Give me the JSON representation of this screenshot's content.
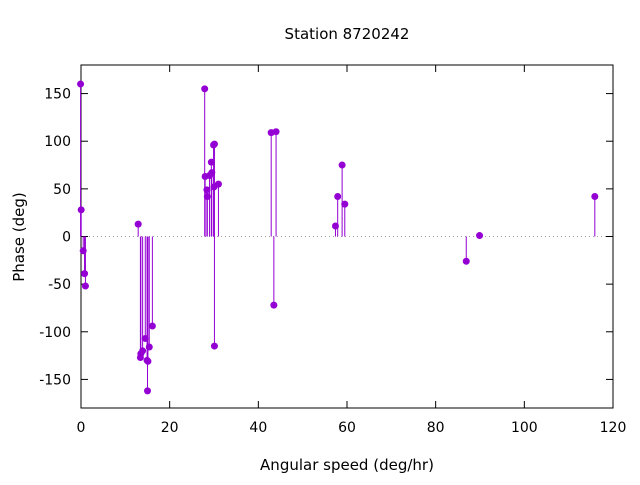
{
  "chart_data": {
    "type": "scatter",
    "style": "stem",
    "title": "Station 8720242",
    "xlabel": "Angular speed (deg/hr)",
    "ylabel": "Phase (deg)",
    "xlim": [
      0,
      120
    ],
    "ylim": [
      -180,
      180
    ],
    "xticks": [
      0,
      20,
      40,
      60,
      80,
      100,
      120
    ],
    "yticks": [
      -150,
      -100,
      -50,
      0,
      50,
      100,
      150
    ],
    "xtick_labels": [
      "0",
      "20",
      "40",
      "60",
      "80",
      "100",
      "120"
    ],
    "ytick_labels": [
      "-150",
      "-100",
      "-50",
      "0",
      "50",
      "100",
      "150"
    ],
    "grid": false,
    "zero_line": "dotted",
    "color": "#9400d3",
    "points": [
      {
        "x": -0.1,
        "y": 160
      },
      {
        "x": 0.04,
        "y": 28
      },
      {
        "x": 0.5,
        "y": -15
      },
      {
        "x": 0.8,
        "y": -39
      },
      {
        "x": 1.0,
        "y": -52
      },
      {
        "x": 12.9,
        "y": 13
      },
      {
        "x": 13.4,
        "y": -127
      },
      {
        "x": 13.5,
        "y": -123
      },
      {
        "x": 13.9,
        "y": -120
      },
      {
        "x": 14.5,
        "y": -107
      },
      {
        "x": 14.9,
        "y": -130
      },
      {
        "x": 15.0,
        "y": -162
      },
      {
        "x": 15.1,
        "y": -131
      },
      {
        "x": 15.4,
        "y": -116
      },
      {
        "x": 16.1,
        "y": -94
      },
      {
        "x": 27.9,
        "y": 155
      },
      {
        "x": 28.0,
        "y": 63
      },
      {
        "x": 28.4,
        "y": 49
      },
      {
        "x": 28.5,
        "y": 42
      },
      {
        "x": 29.0,
        "y": 64
      },
      {
        "x": 29.4,
        "y": 78
      },
      {
        "x": 29.5,
        "y": 67
      },
      {
        "x": 29.9,
        "y": 96
      },
      {
        "x": 30.0,
        "y": 52
      },
      {
        "x": 30.1,
        "y": 97
      },
      {
        "x": 30.1,
        "y": -115
      },
      {
        "x": 31.0,
        "y": 55
      },
      {
        "x": 42.9,
        "y": 109
      },
      {
        "x": 43.5,
        "y": -72
      },
      {
        "x": 44.0,
        "y": 110
      },
      {
        "x": 57.4,
        "y": 11
      },
      {
        "x": 57.9,
        "y": 42
      },
      {
        "x": 58.9,
        "y": 75
      },
      {
        "x": 59.5,
        "y": 34
      },
      {
        "x": 86.9,
        "y": -26
      },
      {
        "x": 89.9,
        "y": 1
      },
      {
        "x": 115.9,
        "y": 42
      }
    ]
  }
}
